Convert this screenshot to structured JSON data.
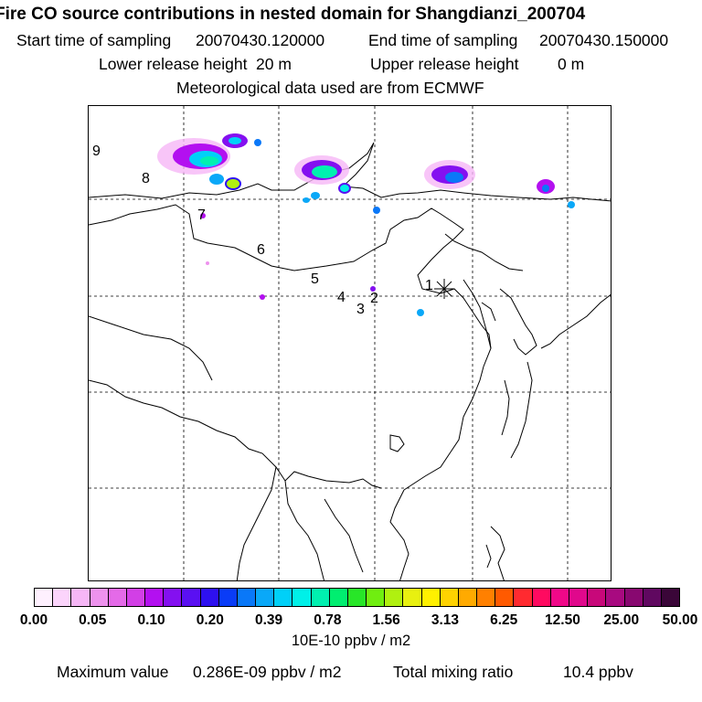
{
  "header": {
    "title": "Fire CO source contributions in nested domain for Shangdianzi_200704",
    "start_label": "Start time of sampling",
    "start_value": "20070430.120000",
    "end_label": "End time of sampling",
    "end_value": "20070430.150000",
    "lower_label": "Lower release height",
    "lower_value": "20 m",
    "upper_label": "Upper release height",
    "upper_value": "0 m",
    "meteo": "Meteorological data used are from ECMWF"
  },
  "map": {
    "receptor_marker": "asterisk-marker",
    "trajectory_labels": [
      "1",
      "2",
      "3",
      "4",
      "5",
      "6",
      "7",
      "8",
      "9"
    ]
  },
  "legend": {
    "colors": [
      "#fef0fe",
      "#fbd4fb",
      "#f6b6f6",
      "#ee92ee",
      "#e46ae8",
      "#d23fe6",
      "#b310f0",
      "#8410f0",
      "#5a10f2",
      "#2e10f0",
      "#0a3cf7",
      "#0a78f8",
      "#0aa8f8",
      "#00d0f8",
      "#00f0e8",
      "#00f0b0",
      "#00ee70",
      "#28e628",
      "#70ee10",
      "#b0f010",
      "#e8f010",
      "#fff000",
      "#ffd200",
      "#ffaa00",
      "#ff8000",
      "#ff5a00",
      "#ff2a30",
      "#ff0a60",
      "#f00888",
      "#e0088c",
      "#c8087a",
      "#a80a80",
      "#880870",
      "#600860",
      "#3a0638"
    ],
    "ticks": [
      "0.00",
      "0.05",
      "0.10",
      "0.20",
      "0.39",
      "0.78",
      "1.56",
      "3.13",
      "6.25",
      "12.50",
      "25.00",
      "50.00"
    ],
    "unit": "10E-10 ppbv / m2"
  },
  "footer": {
    "max_label": "Maximum value",
    "max_value": "0.286E-09 ppbv / m2",
    "total_label": "Total mixing ratio",
    "total_value": "10.4 ppbv"
  }
}
